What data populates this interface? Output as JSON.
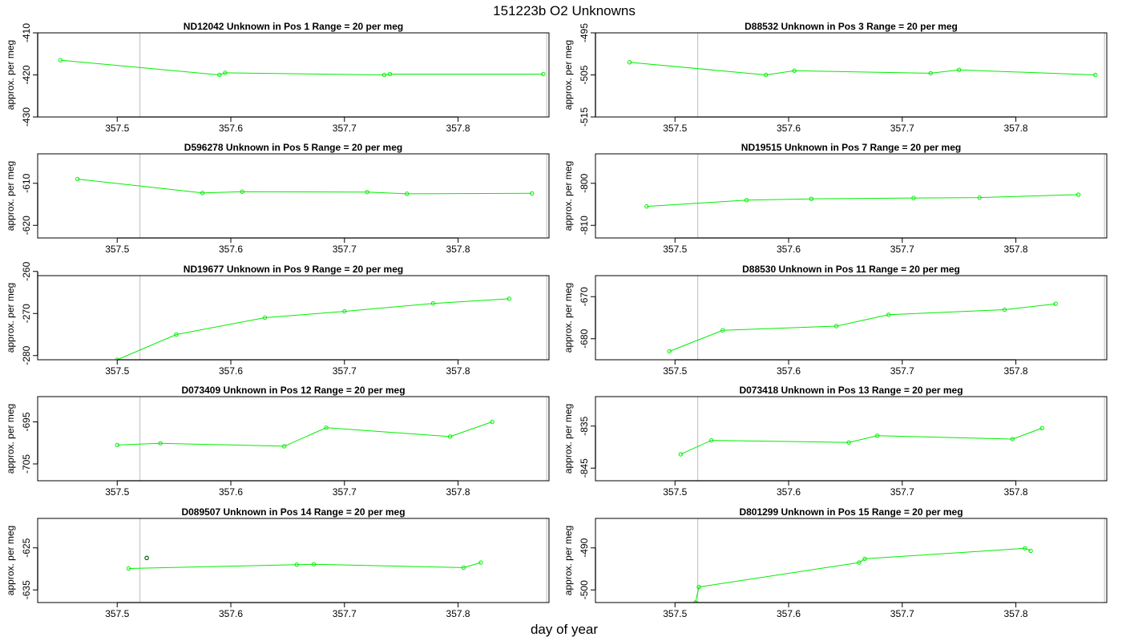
{
  "title": "151223b  O2 Unknowns",
  "xlabel": "day of year",
  "colors": {
    "line": "#00ee00",
    "vline": "#c8c8c8",
    "extra_point": "#006400",
    "axis": "#000000"
  },
  "chart_data": [
    {
      "type": "line",
      "header": "ND12042    Unknown in Pos 1         Range = 20 per meg",
      "ylabel": "approx. per meg",
      "xlim": [
        357.43,
        357.88
      ],
      "ylim": [
        -430,
        -410
      ],
      "yticks": [
        -430,
        -420,
        -410
      ],
      "xticks": [
        357.5,
        357.6,
        357.7,
        357.8
      ],
      "vlines": [
        357.52,
        357.878
      ],
      "series": [
        {
          "x": [
            357.45,
            357.59,
            357.595,
            357.735,
            357.74,
            357.875
          ],
          "y": [
            -416.5,
            -420,
            -419.5,
            -420,
            -419.8,
            -419.8
          ]
        }
      ]
    },
    {
      "type": "line",
      "header": "D88532    Unknown in Pos 3         Range = 20 per meg",
      "ylabel": "approx. per meg",
      "xlim": [
        357.43,
        357.88
      ],
      "ylim": [
        -515,
        -495
      ],
      "yticks": [
        -515,
        -505,
        -495
      ],
      "xticks": [
        357.5,
        357.6,
        357.7,
        357.8
      ],
      "vlines": [
        357.52,
        357.878
      ],
      "series": [
        {
          "x": [
            357.46,
            357.58,
            357.605,
            357.725,
            357.75,
            357.87
          ],
          "y": [
            -502,
            -505,
            -504,
            -504.6,
            -503.8,
            -505
          ]
        }
      ]
    },
    {
      "type": "line",
      "header": "D596278    Unknown in Pos 5         Range = 20 per meg",
      "ylabel": "approx. per meg",
      "xlim": [
        357.43,
        357.88
      ],
      "ylim": [
        -623,
        -603
      ],
      "yticks": [
        -620,
        -610
      ],
      "xticks": [
        357.5,
        357.6,
        357.7,
        357.8
      ],
      "vlines": [
        357.52,
        357.878
      ],
      "series": [
        {
          "x": [
            357.465,
            357.575,
            357.61,
            357.72,
            357.755,
            357.865
          ],
          "y": [
            -609,
            -612.3,
            -612,
            -612.1,
            -612.5,
            -612.4
          ]
        }
      ]
    },
    {
      "type": "line",
      "header": "ND19515    Unknown in Pos 7         Range = 20 per meg",
      "ylabel": "approx. per meg",
      "xlim": [
        357.43,
        357.88
      ],
      "ylim": [
        -813,
        -793
      ],
      "yticks": [
        -810,
        -800
      ],
      "xticks": [
        357.5,
        357.6,
        357.7,
        357.8
      ],
      "vlines": [
        357.52,
        357.878
      ],
      "series": [
        {
          "x": [
            357.475,
            357.563,
            357.62,
            357.71,
            357.768,
            357.855
          ],
          "y": [
            -805.5,
            -804,
            -803.7,
            -803.5,
            -803.4,
            -802.7
          ]
        }
      ]
    },
    {
      "type": "line",
      "header": "ND19677    Unknown in Pos 9         Range = 20 per meg",
      "ylabel": "approx. per meg",
      "xlim": [
        357.43,
        357.88
      ],
      "ylim": [
        -281,
        -261
      ],
      "yticks": [
        -280,
        -270,
        -260
      ],
      "xticks": [
        357.5,
        357.6,
        357.7,
        357.8
      ],
      "vlines": [
        357.52,
        357.878
      ],
      "series": [
        {
          "x": [
            357.5,
            357.552,
            357.63,
            357.7,
            357.778,
            357.845
          ],
          "y": [
            -281,
            -275,
            -271,
            -269.5,
            -267.6,
            -266.5
          ]
        }
      ]
    },
    {
      "type": "line",
      "header": "D88530    Unknown in Pos 11         Range = 20 per meg",
      "ylabel": "approx. per meg",
      "xlim": [
        357.43,
        357.88
      ],
      "ylim": [
        -685,
        -665
      ],
      "yticks": [
        -680,
        -670
      ],
      "xticks": [
        357.5,
        357.6,
        357.7,
        357.8
      ],
      "vlines": [
        357.52,
        357.878
      ],
      "series": [
        {
          "x": [
            357.495,
            357.542,
            357.642,
            357.688,
            357.79,
            357.835
          ],
          "y": [
            -683,
            -678,
            -677,
            -674.3,
            -673.1,
            -671.7
          ]
        }
      ]
    },
    {
      "type": "line",
      "header": "D073409    Unknown in Pos 12         Range = 20 per meg",
      "ylabel": "approx. per meg",
      "xlim": [
        357.43,
        357.88
      ],
      "ylim": [
        -709,
        -689
      ],
      "yticks": [
        -705,
        -695
      ],
      "xticks": [
        357.5,
        357.6,
        357.7,
        357.8
      ],
      "vlines": [
        357.52,
        357.878
      ],
      "series": [
        {
          "x": [
            357.5,
            357.538,
            357.647,
            357.684,
            357.793,
            357.83
          ],
          "y": [
            -700.5,
            -700.1,
            -700.8,
            -696.4,
            -698.5,
            -695
          ]
        }
      ]
    },
    {
      "type": "line",
      "header": "D073418    Unknown in Pos 13         Range = 20 per meg",
      "ylabel": "approx. per meg",
      "xlim": [
        357.43,
        357.88
      ],
      "ylim": [
        -848,
        -828
      ],
      "yticks": [
        -845,
        -835
      ],
      "xticks": [
        357.5,
        357.6,
        357.7,
        357.8
      ],
      "vlines": [
        357.52,
        357.878
      ],
      "series": [
        {
          "x": [
            357.505,
            357.532,
            357.653,
            357.678,
            357.797,
            357.823
          ],
          "y": [
            -841.7,
            -838.4,
            -838.9,
            -837.3,
            -838.1,
            -835.5
          ]
        }
      ]
    },
    {
      "type": "line",
      "header": "D089507    Unknown in Pos 14         Range = 20 per meg",
      "ylabel": "approx. per meg",
      "xlim": [
        357.43,
        357.88
      ],
      "ylim": [
        -638,
        -618
      ],
      "yticks": [
        -635,
        -625
      ],
      "xticks": [
        357.5,
        357.6,
        357.7,
        357.8
      ],
      "vlines": [
        357.52,
        357.878
      ],
      "series": [
        {
          "x": [
            357.51,
            357.658,
            357.673,
            357.805,
            357.82
          ],
          "y": [
            -629.9,
            -629,
            -628.9,
            -629.7,
            -628.5
          ]
        }
      ],
      "extra_points": [
        {
          "x": 357.526,
          "y": -627.4
        }
      ]
    },
    {
      "type": "line",
      "header": "D801299    Unknown in Pos 15         Range = 20 per meg",
      "ylabel": "approx. per meg",
      "xlim": [
        357.43,
        357.88
      ],
      "ylim": [
        -503,
        -483
      ],
      "yticks": [
        -500,
        -490
      ],
      "xticks": [
        357.5,
        357.6,
        357.7,
        357.8
      ],
      "vlines": [
        357.52,
        357.878
      ],
      "series": [
        {
          "x": [
            357.518,
            357.521,
            357.662,
            357.667,
            357.808,
            357.813
          ],
          "y": [
            -503,
            -499.3,
            -493.5,
            -492.6,
            -490.1,
            -490.7
          ]
        }
      ]
    }
  ]
}
